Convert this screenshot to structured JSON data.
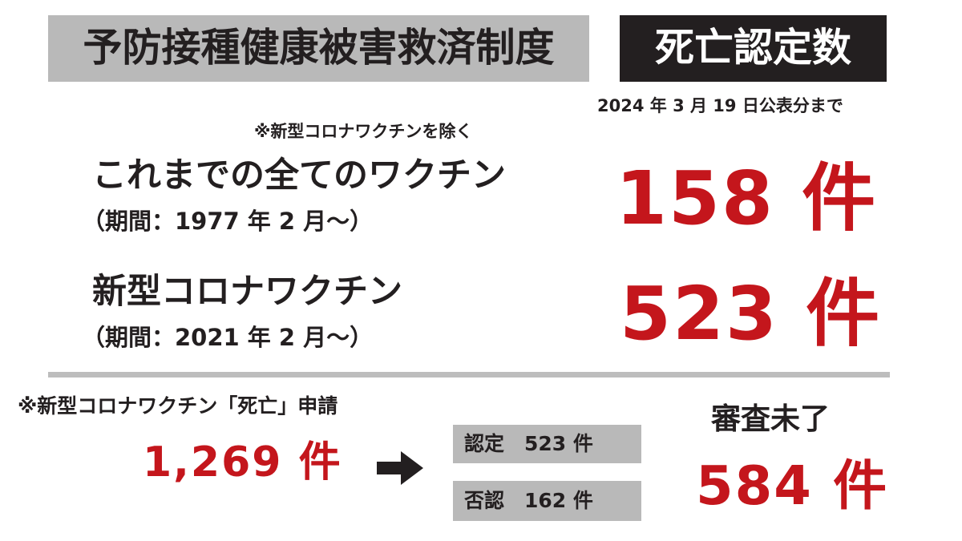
{
  "header": {
    "system_title": "予防接種健康被害救済制度",
    "death_count_title": "死亡認定数",
    "as_of": "2024 年 3 月 19 日公表分まで"
  },
  "all_vaccines": {
    "note": "※新型コロナワクチンを除く",
    "label": "これまでの全てのワクチン",
    "period": "（期間：1977 年 2 月〜）",
    "count": "158 件"
  },
  "covid_vaccine": {
    "label": "新型コロナワクチン",
    "period": "（期間：2021 年 2 月〜）",
    "count": "523 件"
  },
  "applications": {
    "note": "※新型コロナワクチン「死亡」申請",
    "total": "1,269 件",
    "approved": "認定　523 件",
    "rejected": "否認　162 件",
    "pending_label": "審査未了",
    "pending_count": "584 件"
  },
  "colors": {
    "accent_red": "#c4161c",
    "box_grey": "#b9b9b9",
    "box_black": "#231f20"
  }
}
